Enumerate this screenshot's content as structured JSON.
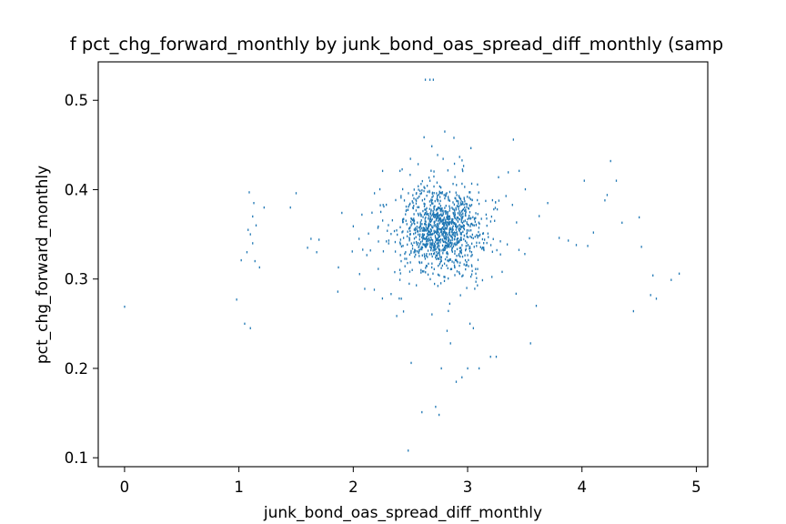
{
  "chart_data": {
    "type": "scatter",
    "title": "f pct_chg_forward_monthly by junk_bond_oas_spread_diff_monthly (samp",
    "xlabel": "junk_bond_oas_spread_diff_monthly",
    "ylabel": "pct_chg_forward_monthly",
    "xlim": [
      -0.23,
      5.1
    ],
    "ylim": [
      0.09,
      0.543
    ],
    "xticks": [
      0,
      1,
      2,
      3,
      4,
      5
    ],
    "yticks": [
      0.1,
      0.2,
      0.3,
      0.4,
      0.5
    ],
    "xtick_labels": [
      "0",
      "1",
      "2",
      "3",
      "4",
      "5"
    ],
    "ytick_labels": [
      "0.1",
      "0.2",
      "0.3",
      "0.4",
      "0.5"
    ],
    "grid": false,
    "legend": "none",
    "marker": ",",
    "color": "#1f77b4",
    "cluster": {
      "center_x": 2.77,
      "center_y": 0.355,
      "spread_x": 0.16,
      "spread_y": 0.022,
      "n": 1150
    },
    "outliers": {
      "x": [
        0.0,
        0.98,
        1.02,
        1.05,
        1.07,
        1.09,
        1.1,
        1.12,
        1.15,
        1.13,
        1.08,
        1.1,
        1.12,
        1.14,
        1.18,
        1.22,
        1.45,
        1.5,
        1.6,
        1.63,
        1.68,
        1.7,
        1.87,
        1.9,
        2.0,
        2.05,
        2.1,
        2.15,
        2.22,
        2.48,
        2.6,
        2.63,
        2.67,
        2.7,
        2.72,
        2.75,
        2.77,
        2.8,
        2.82,
        2.85,
        2.88,
        2.9,
        2.95,
        3.0,
        3.02,
        3.05,
        3.1,
        3.2,
        3.25,
        3.4,
        3.45,
        3.5,
        3.55,
        3.6,
        3.7,
        3.8,
        3.88,
        3.95,
        4.02,
        4.05,
        4.1,
        4.2,
        4.22,
        4.25,
        4.3,
        4.35,
        4.45,
        4.5,
        4.52,
        4.6,
        4.62,
        4.65,
        4.78,
        4.85
      ],
      "y": [
        0.269,
        0.277,
        0.321,
        0.25,
        0.33,
        0.397,
        0.245,
        0.37,
        0.36,
        0.385,
        0.355,
        0.35,
        0.34,
        0.32,
        0.313,
        0.38,
        0.38,
        0.396,
        0.335,
        0.345,
        0.33,
        0.344,
        0.313,
        0.374,
        0.359,
        0.345,
        0.289,
        0.332,
        0.342,
        0.108,
        0.151,
        0.523,
        0.523,
        0.523,
        0.157,
        0.148,
        0.2,
        0.465,
        0.242,
        0.228,
        0.458,
        0.185,
        0.19,
        0.2,
        0.25,
        0.245,
        0.2,
        0.213,
        0.213,
        0.456,
        0.421,
        0.328,
        0.228,
        0.27,
        0.385,
        0.346,
        0.343,
        0.338,
        0.41,
        0.337,
        0.352,
        0.388,
        0.394,
        0.432,
        0.41,
        0.363,
        0.264,
        0.369,
        0.336,
        0.282,
        0.304,
        0.278,
        0.299,
        0.306
      ]
    }
  }
}
